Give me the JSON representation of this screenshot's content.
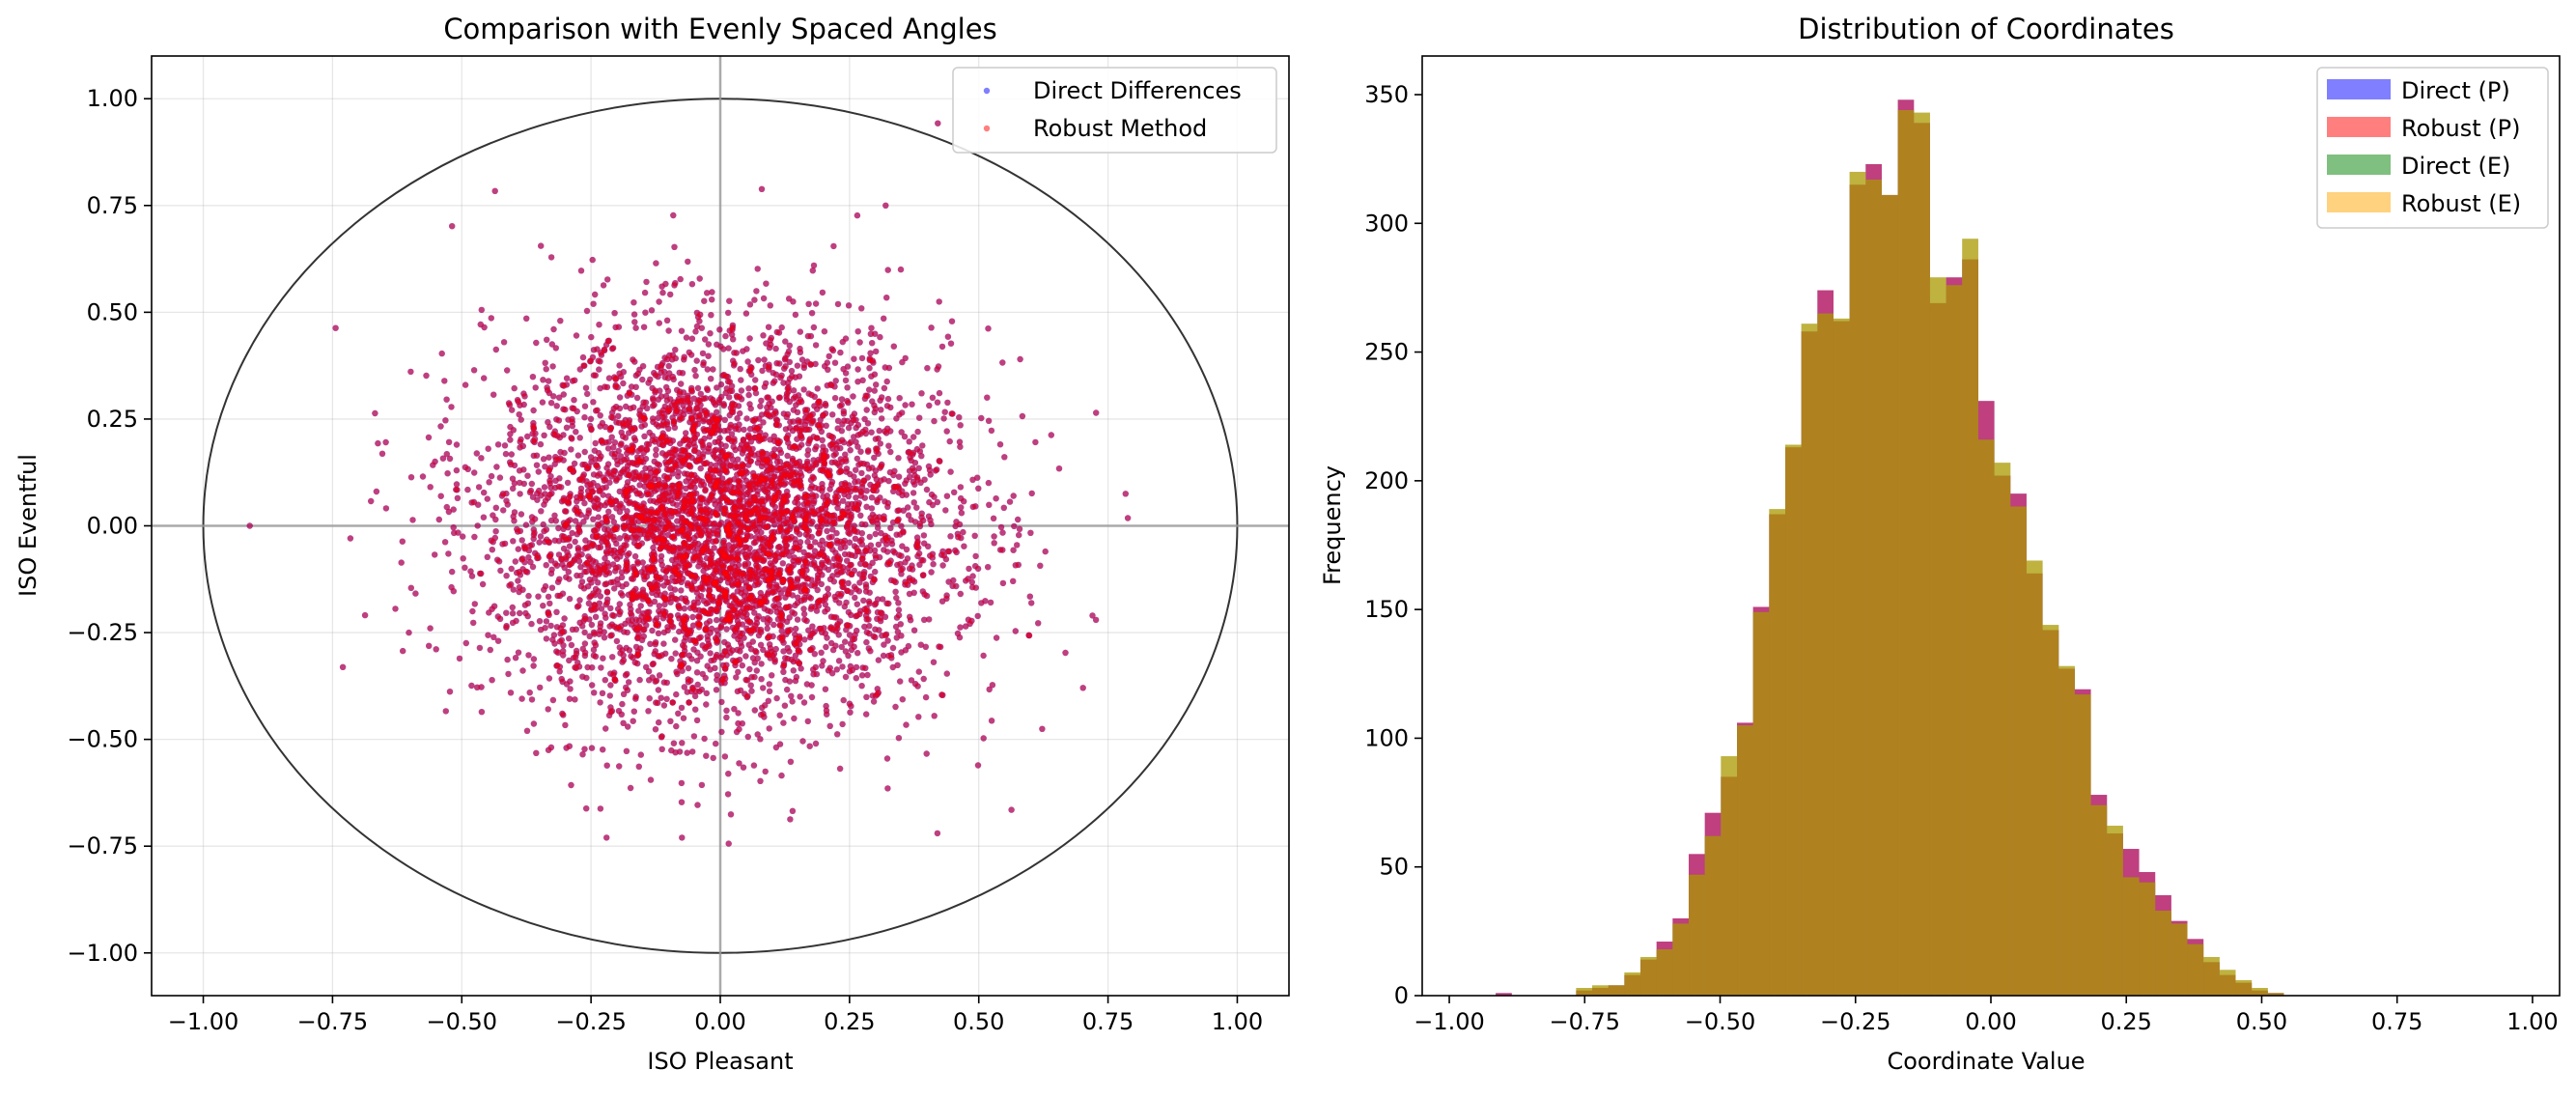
{
  "chart_data": [
    {
      "type": "scatter",
      "title": "Comparison with Evenly Spaced Angles",
      "xlabel": "ISO Pleasant",
      "ylabel": "ISO Eventful",
      "xlim": [
        -1.1,
        1.1
      ],
      "ylim": [
        -1.1,
        1.1
      ],
      "xticks": [
        -1.0,
        -0.75,
        -0.5,
        -0.25,
        0.0,
        0.25,
        0.5,
        0.75,
        1.0
      ],
      "xtick_labels": [
        "−1.00",
        "−0.75",
        "−0.50",
        "−0.25",
        "0.00",
        "0.25",
        "0.50",
        "0.75",
        "1.00"
      ],
      "yticks": [
        -1.0,
        -0.75,
        -0.5,
        -0.25,
        0.0,
        0.25,
        0.5,
        0.75,
        1.0
      ],
      "ytick_labels": [
        "−1.00",
        "−0.75",
        "−0.50",
        "−0.25",
        "0.00",
        "0.25",
        "0.50",
        "0.75",
        "1.00"
      ],
      "grid": true,
      "legend_position": "top-right",
      "reference_circle_radius": 1.0,
      "reference_lines": {
        "x": 0,
        "y": 0
      },
      "series": [
        {
          "name": "Direct Differences",
          "color": "#0000ff",
          "alpha": 0.5,
          "point_count": 5000,
          "distribution": {
            "mean_x": 0.0,
            "mean_y": 0.0,
            "std_x": 0.22,
            "std_y": 0.22
          }
        },
        {
          "name": "Robust Method",
          "color": "#ff0000",
          "alpha": 0.5,
          "point_count": 5000,
          "distribution": {
            "mean_x": 0.0,
            "mean_y": 0.0,
            "std_x": 0.22,
            "std_y": 0.22
          }
        }
      ],
      "notable_points": [
        [
          -0.91,
          0.0
        ],
        [
          0.72,
          -0.21
        ],
        [
          0.32,
          0.75
        ],
        [
          -0.22,
          -0.73
        ],
        [
          0.42,
          -0.72
        ],
        [
          0.58,
          0.39
        ]
      ]
    },
    {
      "type": "bar",
      "subtype": "histogram",
      "title": "Distribution of Coordinates",
      "xlabel": "Coordinate Value",
      "ylabel": "Frequency",
      "xlim": [
        -1.05,
        1.05
      ],
      "ylim": [
        0,
        365
      ],
      "xticks": [
        -1.0,
        -0.75,
        -0.5,
        -0.25,
        0.0,
        0.25,
        0.5,
        0.75,
        1.0
      ],
      "xtick_labels": [
        "−1.00",
        "−0.75",
        "−0.50",
        "−0.25",
        "0.00",
        "0.25",
        "0.50",
        "0.75",
        "1.00"
      ],
      "yticks": [
        0,
        50,
        100,
        150,
        200,
        250,
        300,
        350
      ],
      "ytick_labels": [
        "0",
        "50",
        "100",
        "150",
        "200",
        "250",
        "300",
        "350"
      ],
      "grid": false,
      "legend_position": "top-right",
      "bin_edges": [
        -0.9143,
        -0.8846,
        -0.8549,
        -0.8252,
        -0.7955,
        -0.7658,
        -0.7361,
        -0.7064,
        -0.6767,
        -0.647,
        -0.6173,
        -0.5876,
        -0.5579,
        -0.5282,
        -0.4985,
        -0.4688,
        -0.4391,
        -0.4094,
        -0.3797,
        -0.35,
        -0.3203,
        -0.2906,
        -0.2609,
        -0.2312,
        -0.2015,
        -0.1718,
        -0.1421,
        -0.1124,
        -0.0827,
        -0.053,
        -0.0233,
        0.0064,
        0.0361,
        0.0658,
        0.0955,
        0.1252,
        0.1549,
        0.1846,
        0.2143,
        0.244,
        0.2737,
        0.3034,
        0.3331,
        0.3628,
        0.3925,
        0.4222,
        0.4519,
        0.4816,
        0.5113,
        0.541,
        0.5707,
        0.6004,
        0.6301,
        0.6598,
        0.6895,
        0.7192,
        0.7489
      ],
      "series": [
        {
          "name": "Direct (P)",
          "color": "#0000ff",
          "alpha": 0.5,
          "values": [
            1,
            0,
            0,
            0,
            0,
            2,
            3,
            4,
            8,
            14,
            21,
            30,
            55,
            71,
            85,
            106,
            151,
            187,
            213,
            258,
            274,
            262,
            315,
            323,
            311,
            348,
            339,
            269,
            279,
            286,
            231,
            202,
            195,
            164,
            142,
            127,
            119,
            78,
            63,
            57,
            48,
            39,
            29,
            22,
            13,
            8,
            5,
            2,
            1,
            0,
            0,
            0,
            0,
            0,
            0,
            0
          ]
        },
        {
          "name": "Robust (P)",
          "color": "#ff0000",
          "alpha": 0.5,
          "values": [
            1,
            0,
            0,
            0,
            0,
            2,
            3,
            4,
            8,
            14,
            21,
            30,
            55,
            71,
            85,
            106,
            151,
            187,
            213,
            258,
            274,
            262,
            315,
            323,
            311,
            348,
            339,
            269,
            279,
            286,
            231,
            202,
            195,
            164,
            142,
            127,
            119,
            78,
            63,
            57,
            48,
            39,
            29,
            22,
            13,
            8,
            5,
            2,
            1,
            0,
            0,
            0,
            0,
            0,
            0,
            0
          ]
        },
        {
          "name": "Direct (E)",
          "color": "#008000",
          "alpha": 0.5,
          "values": [
            0,
            0,
            0,
            0,
            0,
            3,
            4,
            4,
            9,
            15,
            18,
            28,
            47,
            62,
            93,
            105,
            149,
            189,
            214,
            261,
            265,
            263,
            320,
            317,
            311,
            344,
            343,
            279,
            276,
            294,
            216,
            207,
            190,
            169,
            144,
            128,
            117,
            74,
            66,
            46,
            44,
            33,
            28,
            20,
            15,
            10,
            6,
            3,
            1,
            0,
            0,
            0,
            0,
            0,
            0,
            0
          ]
        },
        {
          "name": "Robust (E)",
          "color": "#ffa500",
          "alpha": 0.5,
          "values": [
            0,
            0,
            0,
            0,
            0,
            3,
            4,
            4,
            9,
            15,
            18,
            28,
            47,
            62,
            93,
            105,
            149,
            189,
            214,
            261,
            265,
            263,
            320,
            317,
            311,
            344,
            343,
            279,
            276,
            294,
            216,
            207,
            190,
            169,
            144,
            128,
            117,
            74,
            66,
            46,
            44,
            33,
            28,
            20,
            15,
            10,
            6,
            3,
            1,
            0,
            0,
            0,
            0,
            0,
            0,
            0
          ]
        }
      ]
    }
  ]
}
